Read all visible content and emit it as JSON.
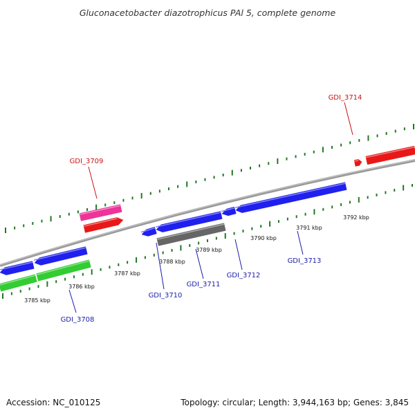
{
  "title": "Gluconacetobacter diazotrophicus PAl 5, complete genome",
  "footer": {
    "accession": "Accession: NC_010125",
    "topology": "Topology: circular; Length: 3,944,163 bp; Genes: 3,845"
  },
  "colors": {
    "forward_gene": "#2020ee",
    "reverse_gene": "#e81818",
    "rna_gene": "#ee3399",
    "cds_green": "#33cc33",
    "other_gene": "#666666",
    "backbone": "#888888",
    "tick": "#227722",
    "label_blue": "#1a1aaa",
    "label_red": "#cc1111"
  },
  "kbp_labels": [
    "3785 kbp",
    "3786 kbp",
    "3787 kbp",
    "3788 kbp",
    "3789 kbp",
    "3790 kbp",
    "3791 kbp",
    "3792 kbp"
  ],
  "gene_labels": [
    {
      "text": "GDI_3708",
      "color": "blue"
    },
    {
      "text": "GDI_3709",
      "color": "red"
    },
    {
      "text": "GDI_3710",
      "color": "blue"
    },
    {
      "text": "GDI_3711",
      "color": "blue"
    },
    {
      "text": "GDI_3712",
      "color": "blue"
    },
    {
      "text": "GDI_3713",
      "color": "blue"
    },
    {
      "text": "GDI_3714",
      "color": "red"
    }
  ]
}
